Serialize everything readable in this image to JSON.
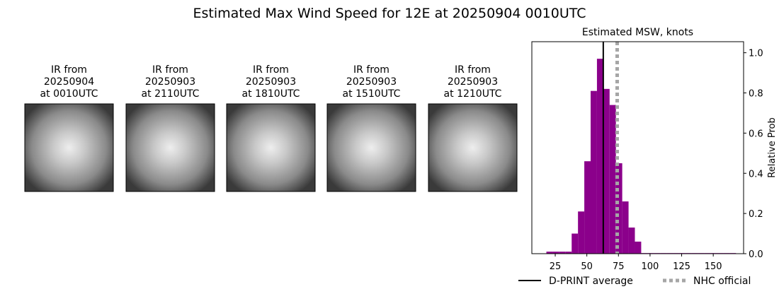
{
  "title": "Estimated Max Wind Speed for 12E at 20250904 0010UTC",
  "panels": [
    {
      "lines": [
        "IR from",
        "20250904",
        "at 0010UTC"
      ]
    },
    {
      "lines": [
        "IR from",
        "20250903",
        "at 2110UTC"
      ]
    },
    {
      "lines": [
        "IR from",
        "20250903",
        "at 1810UTC"
      ]
    },
    {
      "lines": [
        "IR from",
        "20250903",
        "at 1510UTC"
      ]
    },
    {
      "lines": [
        "IR from",
        "20250903",
        "at 1210UTC"
      ]
    }
  ],
  "chart_data": {
    "type": "histogram",
    "title": "Estimated MSW, knots",
    "y_label": "Relative Prob",
    "color": "#8b008b",
    "bins": [
      18,
      23,
      28,
      33,
      38,
      43,
      48,
      53,
      58,
      63,
      68,
      73,
      78,
      83,
      88,
      93,
      98,
      103,
      108,
      113,
      118,
      123,
      128,
      133,
      138,
      143,
      148,
      153,
      158,
      163,
      168
    ],
    "values": [
      0.01,
      0.01,
      0.01,
      0.01,
      0.1,
      0.21,
      0.46,
      0.81,
      0.97,
      0.82,
      0.74,
      0.45,
      0.26,
      0.13,
      0.06,
      0.003,
      0.003,
      0.003,
      0.003,
      0.003,
      0.003,
      0.003,
      0.003,
      0.003,
      0.003,
      0.003,
      0.003,
      0.003,
      0.003,
      0.003
    ],
    "xlim": [
      6.5,
      174
    ],
    "ylim": [
      0,
      1.055
    ],
    "xticks": [
      25,
      50,
      75,
      100,
      125,
      150
    ],
    "yticks": [
      {
        "value": 0,
        "label": "0.0"
      },
      0.2,
      0.4,
      0.6,
      0.8,
      {
        "value": 1,
        "label": "1.0"
      }
    ],
    "lines": [
      {
        "name": "D-PRINT average",
        "value": 63,
        "color": "#000000",
        "style": "solid"
      },
      {
        "name": "NHC official",
        "value": 74,
        "color": "#a6a6a6",
        "style": "dotted"
      }
    ],
    "legend": "bottom"
  }
}
